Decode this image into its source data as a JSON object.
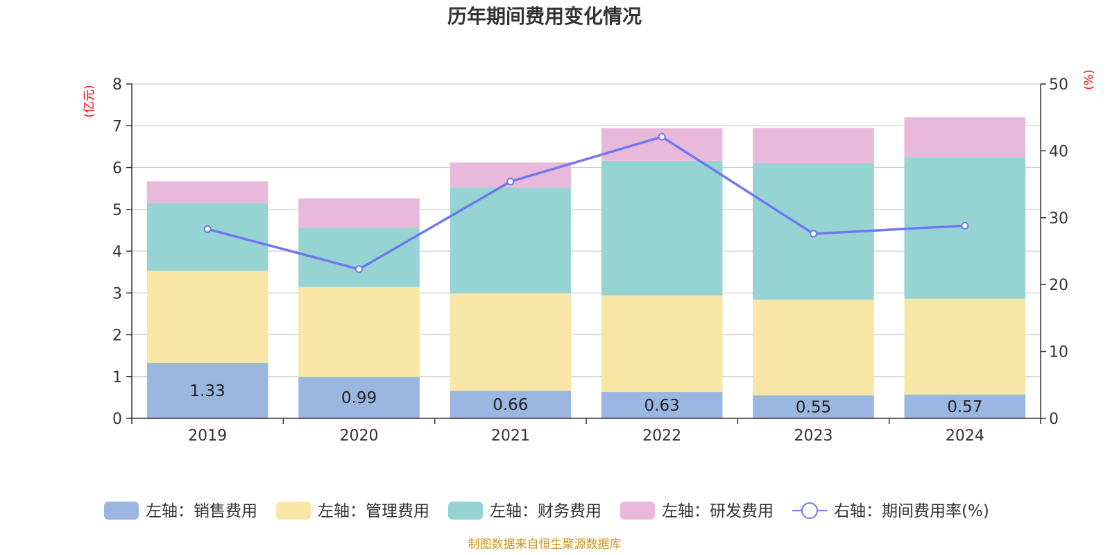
{
  "chart_data": {
    "type": "bar",
    "stacked": true,
    "title": "历年期间费用变化情况",
    "categories": [
      "2019",
      "2020",
      "2021",
      "2022",
      "2023",
      "2024"
    ],
    "left_axis": {
      "unit_label": "(亿元)",
      "ylim": [
        0,
        8
      ],
      "ticks": [
        "0",
        "1",
        "2",
        "3",
        "4",
        "5",
        "6",
        "7",
        "8"
      ]
    },
    "right_axis": {
      "unit_label": "(%)",
      "ylim": [
        0,
        50
      ],
      "ticks": [
        "0",
        "10",
        "20",
        "30",
        "40",
        "50"
      ]
    },
    "series": [
      {
        "name": "左轴：销售费用",
        "axis": "left",
        "type": "bar",
        "color": "#9bb6e0",
        "values": [
          1.33,
          0.99,
          0.66,
          0.63,
          0.55,
          0.57
        ],
        "labels": [
          "1.33",
          "0.99",
          "0.66",
          "0.63",
          "0.55",
          "0.57"
        ]
      },
      {
        "name": "左轴：管理费用",
        "axis": "left",
        "type": "bar",
        "color": "#f7e6a6",
        "values": [
          2.2,
          2.15,
          2.33,
          2.31,
          2.29,
          2.29
        ]
      },
      {
        "name": "左轴：财务费用",
        "axis": "left",
        "type": "bar",
        "color": "#96d4d4",
        "values": [
          1.62,
          1.42,
          2.53,
          3.22,
          3.27,
          3.38
        ]
      },
      {
        "name": "左轴：研发费用",
        "axis": "left",
        "type": "bar",
        "color": "#e8b9da",
        "values": [
          0.52,
          0.7,
          0.6,
          0.78,
          0.84,
          0.96
        ]
      },
      {
        "name": "右轴：期间费用率(%)",
        "axis": "right",
        "type": "line",
        "color": "#7177f0",
        "values": [
          28.3,
          22.3,
          35.4,
          42.1,
          27.6,
          28.8
        ]
      }
    ],
    "legend_position": "bottom",
    "grid": true
  },
  "footer": {
    "source": "制图数据来自恒生聚源数据库"
  }
}
